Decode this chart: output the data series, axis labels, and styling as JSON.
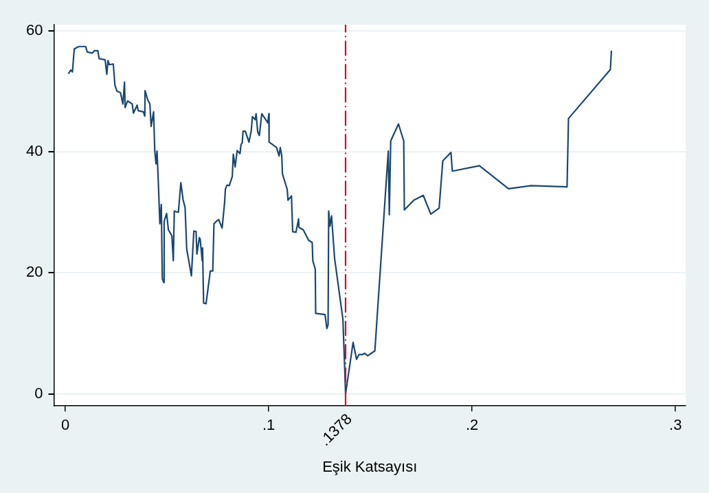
{
  "chart_data": {
    "type": "line",
    "xlabel": "Eşik Katsayısı",
    "xlim": [
      -0.0056,
      0.305
    ],
    "xticks": [
      {
        "value": 0,
        "label": "0"
      },
      {
        "value": 0.1,
        "label": ".1"
      },
      {
        "value": 0.2,
        "label": ".2"
      },
      {
        "value": 0.3,
        "label": ".3"
      }
    ],
    "ylim": [
      -2,
      61
    ],
    "yticks": [
      0,
      20,
      40,
      60
    ],
    "grid": "y",
    "legend": false,
    "marker": "none",
    "line_style": "solid",
    "ref_lines": [
      {
        "axis": "x",
        "value": 0.1378,
        "label": ".1378",
        "color": "#c8102e",
        "line_style": "dashed"
      }
    ],
    "series": [
      {
        "color": "#1a476f",
        "x": [
          0.0015,
          0.0027,
          0.0035,
          0.0044,
          0.0067,
          0.01,
          0.0108,
          0.0132,
          0.0143,
          0.016,
          0.0166,
          0.0196,
          0.0204,
          0.021,
          0.0216,
          0.0236,
          0.0244,
          0.0254,
          0.0271,
          0.0283,
          0.0291,
          0.0294,
          0.0306,
          0.0329,
          0.0335,
          0.0353,
          0.0358,
          0.0384,
          0.0391,
          0.0392,
          0.0405,
          0.0416,
          0.0422,
          0.0434,
          0.044,
          0.0446,
          0.0451,
          0.0457,
          0.0465,
          0.0472,
          0.0477,
          0.0484,
          0.0486,
          0.0498,
          0.0507,
          0.0524,
          0.0531,
          0.0536,
          0.0556,
          0.0568,
          0.0579,
          0.0589,
          0.0597,
          0.0605,
          0.062,
          0.0632,
          0.0643,
          0.0647,
          0.0659,
          0.0663,
          0.0673,
          0.0675,
          0.068,
          0.0692,
          0.0713,
          0.0725,
          0.0731,
          0.0742,
          0.0754,
          0.0771,
          0.0783,
          0.0787,
          0.0795,
          0.0806,
          0.0821,
          0.0826,
          0.0835,
          0.0845,
          0.0859,
          0.0864,
          0.087,
          0.0874,
          0.0885,
          0.0903,
          0.0914,
          0.092,
          0.0934,
          0.0938,
          0.0946,
          0.0954,
          0.0966,
          0.0996,
          0.1001,
          0.1002,
          0.1039,
          0.1051,
          0.1057,
          0.1064,
          0.1068,
          0.1091,
          0.1095,
          0.1112,
          0.1118,
          0.1134,
          0.1147,
          0.1149,
          0.117,
          0.1196,
          0.1214,
          0.1217,
          0.1229,
          0.1231,
          0.1277,
          0.1286,
          0.1292,
          0.1295,
          0.1301,
          0.1309,
          0.1324,
          0.1365,
          0.1378,
          0.1415,
          0.1432,
          0.1444,
          0.1461,
          0.1472,
          0.1487,
          0.1522,
          0.1588,
          0.1593,
          0.16,
          0.1638,
          0.1664,
          0.1667,
          0.1714,
          0.176,
          0.1797,
          0.1838,
          0.1856,
          0.1896,
          0.1903,
          0.2036,
          0.2179,
          0.229,
          0.2467,
          0.2474,
          0.268,
          0.2685
        ],
        "values": [
          52.9,
          53.5,
          53.2,
          57.0,
          57.4,
          57.4,
          56.5,
          56.3,
          56.7,
          56.7,
          55.4,
          55.2,
          52.8,
          55.1,
          54.4,
          54.5,
          51.0,
          50.0,
          49.8,
          47.9,
          51.5,
          47.3,
          48.4,
          47.9,
          46.4,
          47.7,
          46.8,
          46.6,
          45.9,
          50.1,
          48.6,
          47.9,
          44.2,
          46.6,
          40.1,
          38.0,
          40.1,
          35.3,
          28.1,
          31.3,
          19.0,
          18.4,
          28.5,
          29.8,
          27.1,
          26.1,
          22.0,
          30.2,
          30.0,
          34.9,
          32.1,
          30.8,
          23.9,
          22.4,
          19.5,
          26.9,
          26.8,
          23.1,
          25.8,
          25.6,
          22.0,
          24.1,
          15.0,
          14.9,
          20.3,
          20.3,
          28.1,
          28.5,
          28.8,
          27.4,
          31.5,
          33.8,
          34.5,
          34.4,
          35.9,
          39.6,
          37.5,
          40.2,
          39.7,
          41.2,
          41.5,
          43.4,
          43.4,
          41.6,
          43.4,
          45.8,
          45.3,
          46.3,
          43.3,
          42.7,
          46.3,
          44.8,
          46.3,
          41.6,
          40.7,
          39.3,
          40.7,
          39.4,
          36.3,
          33.8,
          32.0,
          32.7,
          26.8,
          26.7,
          28.9,
          27.5,
          27.1,
          25.4,
          25.0,
          22.0,
          20.6,
          13.3,
          13.1,
          10.8,
          11.4,
          30.2,
          27.7,
          29.4,
          22.4,
          12.3,
          0,
          8.5,
          5.7,
          6.5,
          6.5,
          6.7,
          6.3,
          7.1,
          40.1,
          29.6,
          41.8,
          44.6,
          41.8,
          30.4,
          32.0,
          32.8,
          29.7,
          30.7,
          38.5,
          39.9,
          36.8,
          37.7,
          33.9,
          34.4,
          34.2,
          45.5,
          53.6,
          56.7
        ]
      }
    ]
  }
}
